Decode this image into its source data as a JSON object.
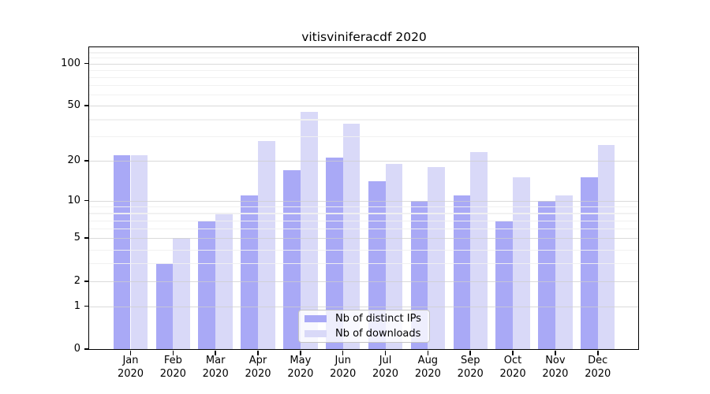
{
  "title": "vitisviniferacdf 2020",
  "chart_data": {
    "type": "bar",
    "scale": "log10(value+1), zero at baseline",
    "months": [
      "Jan",
      "Feb",
      "Mar",
      "Apr",
      "May",
      "Jun",
      "Jul",
      "Aug",
      "Sep",
      "Oct",
      "Nov",
      "Dec"
    ],
    "year": "2020",
    "series": [
      {
        "name": "Nb of distinct IPs",
        "color": "#a9a9f6",
        "values": [
          22,
          3,
          7,
          11,
          17,
          21,
          14,
          10,
          11,
          7,
          10,
          15
        ]
      },
      {
        "name": "Nb of downloads",
        "color": "#d9d9f8",
        "values": [
          22,
          5,
          8,
          28,
          45,
          37,
          19,
          18,
          23,
          15,
          11,
          26
        ]
      }
    ],
    "yticks": [
      0,
      1,
      2,
      5,
      10,
      20,
      50,
      100
    ],
    "minor_yticks": [
      3,
      4,
      6,
      7,
      8,
      9,
      30,
      40,
      60,
      70,
      80,
      90,
      110,
      120
    ],
    "ylim": [
      0,
      131
    ],
    "grid": true,
    "legend_position": "lower center",
    "colors": {
      "spine": "#000000",
      "grid_major": "#cdcdcd",
      "grid_minor": "#f0f0f0"
    }
  }
}
